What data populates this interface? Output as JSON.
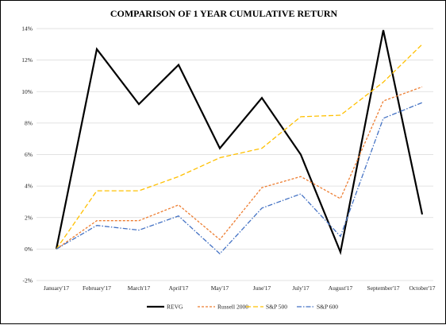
{
  "chart_data": {
    "type": "line",
    "title": "COMPARISON OF 1 YEAR CUMULATIVE  RETURN",
    "xlabel": "",
    "ylabel": "",
    "categories": [
      "January'17",
      "February'17",
      "March'17",
      "April'17",
      "May'17",
      "June'17",
      "July'17",
      "August'17",
      "September'17",
      "October'17"
    ],
    "ylim": [
      -2,
      14
    ],
    "yticks": [
      -2,
      0,
      2,
      4,
      6,
      8,
      10,
      12,
      14
    ],
    "ytick_labels": [
      "-2%",
      "0%",
      "2%",
      "4%",
      "6%",
      "8%",
      "10%",
      "12%",
      "14%"
    ],
    "grid": true,
    "legend_position": "bottom",
    "series": [
      {
        "name": "REVG",
        "color": "#000000",
        "style": "solid",
        "values": [
          0,
          12.7,
          9.2,
          11.7,
          6.4,
          9.6,
          6.0,
          -0.2,
          13.9,
          2.2
        ]
      },
      {
        "name": "Russell 2000",
        "color": "#ED7D31",
        "style": "dashed",
        "values": [
          0,
          1.8,
          1.8,
          2.8,
          0.6,
          3.9,
          4.6,
          3.2,
          9.4,
          10.3
        ]
      },
      {
        "name": "S&P 500",
        "color": "#FFC000",
        "style": "longdash",
        "values": [
          0,
          3.7,
          3.7,
          4.6,
          5.8,
          6.4,
          8.4,
          8.5,
          10.6,
          13.0
        ]
      },
      {
        "name": "S&P 600",
        "color": "#4472C4",
        "style": "dashdot",
        "values": [
          0,
          1.5,
          1.2,
          2.1,
          -0.3,
          2.6,
          3.5,
          0.8,
          8.3,
          9.3
        ]
      }
    ]
  }
}
